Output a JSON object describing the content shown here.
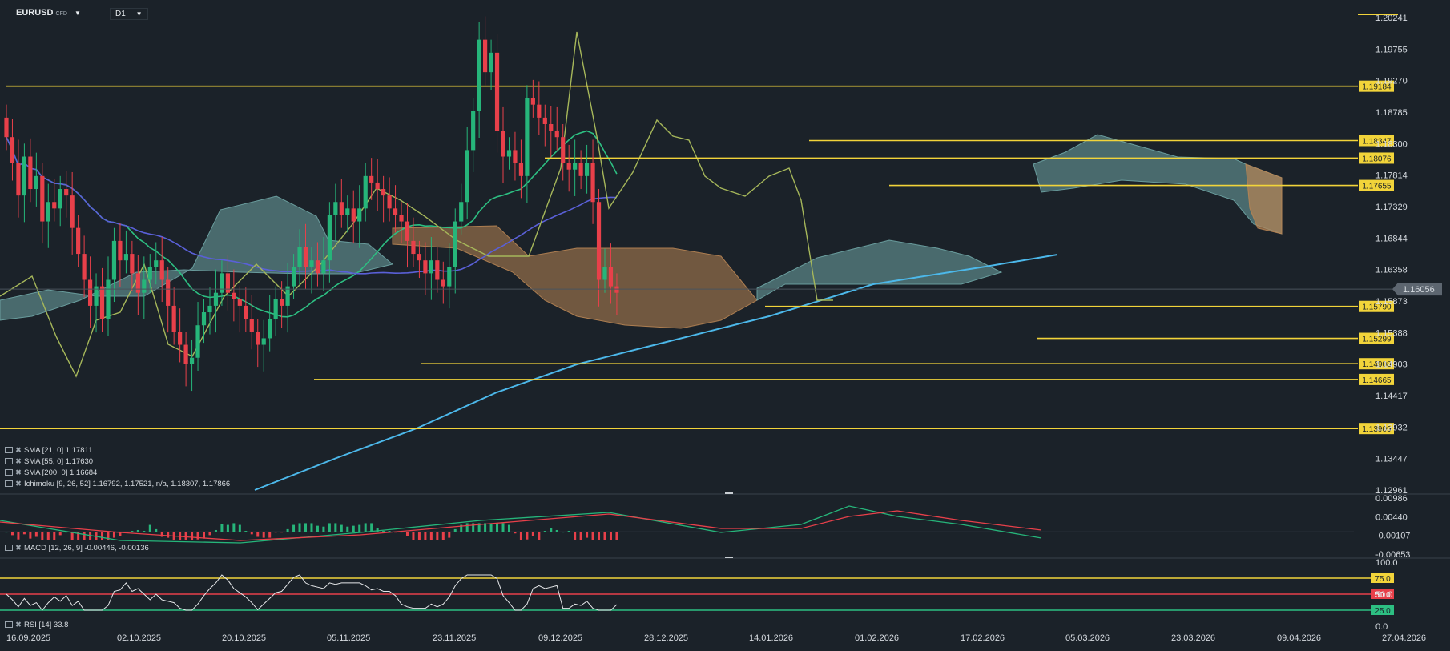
{
  "header": {
    "symbol": "EURUSD",
    "symbol_suffix": "CFD",
    "timeframe": "D1"
  },
  "indicator_legend": [
    {
      "label": "SMA [21, 0] 1.17811"
    },
    {
      "label": "SMA [55, 0] 1.17630"
    },
    {
      "label": "SMA [200, 0] 1.16684"
    },
    {
      "label": "Ichimoku [9, 26, 52] 1.16792, 1.17521, n/a, 1.18307, 1.17866"
    }
  ],
  "macd_legend": "MACD [12, 26, 9] -0.00446, -0.00136",
  "rsi_legend": "RSI [14] 33.8",
  "colors": {
    "background": "#1b2229",
    "bull": "#26b57a",
    "bear": "#e8404a",
    "level": "#f2d43a",
    "sma21": "#2dbf82",
    "sma55": "#5a60d8",
    "sma200": "#4cb8ea",
    "cloud_bull": "#6fa5a5",
    "cloud_bear": "#b88554",
    "chikou": "#a6b75a",
    "current_price_tag": "#5d6670"
  },
  "chart_data": [
    {
      "type": "candlestick",
      "name": "price",
      "x_dates": [
        "16.09.2025",
        "02.10.2025",
        "20.10.2025",
        "05.11.2025",
        "23.11.2025",
        "09.12.2025",
        "28.12.2025",
        "14.01.2026",
        "01.02.2026",
        "17.02.2026",
        "05.03.2026",
        "23.03.2026",
        "09.04.2026",
        "27.04.2026"
      ],
      "y_ticks": [
        "1.20241",
        "1.19755",
        "1.19270",
        "1.18785",
        "1.18300",
        "1.17814",
        "1.17329",
        "1.16844",
        "1.16358",
        "1.15873",
        "1.15388",
        "1.14903",
        "1.14417",
        "1.13932",
        "1.13447",
        "1.12961"
      ],
      "ylim": [
        1.12961,
        1.20241
      ],
      "current_price": "1.16056",
      "horizontal_levels": [
        "1.19184",
        "1.18347",
        "1.18076",
        "1.17655",
        "1.15790",
        "1.15299",
        "1.14908",
        "1.14665",
        "1.13909"
      ],
      "closes": [
        1.184,
        1.18,
        1.175,
        1.181,
        1.176,
        1.178,
        1.171,
        1.174,
        1.173,
        1.176,
        1.175,
        1.17,
        1.166,
        1.162,
        1.158,
        1.161,
        1.156,
        1.162,
        1.168,
        1.165,
        1.166,
        1.163,
        1.16,
        1.162,
        1.164,
        1.165,
        1.162,
        1.158,
        1.154,
        1.152,
        1.149,
        1.15,
        1.155,
        1.157,
        1.158,
        1.16,
        1.163,
        1.16,
        1.159,
        1.158,
        1.156,
        1.154,
        1.152,
        1.153,
        1.156,
        1.159,
        1.158,
        1.161,
        1.164,
        1.167,
        1.164,
        1.165,
        1.163,
        1.165,
        1.172,
        1.174,
        1.172,
        1.173,
        1.171,
        1.173,
        1.178,
        1.177,
        1.176,
        1.175,
        1.173,
        1.172,
        1.171,
        1.168,
        1.166,
        1.165,
        1.163,
        1.165,
        1.162,
        1.161,
        1.164,
        1.171,
        1.174,
        1.182,
        1.188,
        1.199,
        1.194,
        1.197,
        1.185,
        1.181,
        1.182,
        1.18,
        1.178,
        1.19,
        1.189,
        1.187,
        1.186,
        1.185,
        1.184,
        1.18,
        1.179,
        1.18,
        1.178,
        1.18,
        1.174,
        1.162,
        1.164,
        1.161,
        1.16
      ]
    },
    {
      "type": "bar",
      "name": "MACD",
      "y_ticks": [
        "0.00986",
        "0.00440",
        "-0.00107",
        "-0.00653"
      ],
      "ylim": [
        -0.00653,
        0.00986
      ],
      "macd": -0.00446,
      "signal": -0.00136
    },
    {
      "type": "line",
      "name": "RSI",
      "y_ticks": [
        "100.0",
        "50.0",
        "0.0"
      ],
      "ylim": [
        0,
        100
      ],
      "levels": [
        "75.0",
        "50.0",
        "25.0"
      ],
      "current": 33.8
    }
  ]
}
